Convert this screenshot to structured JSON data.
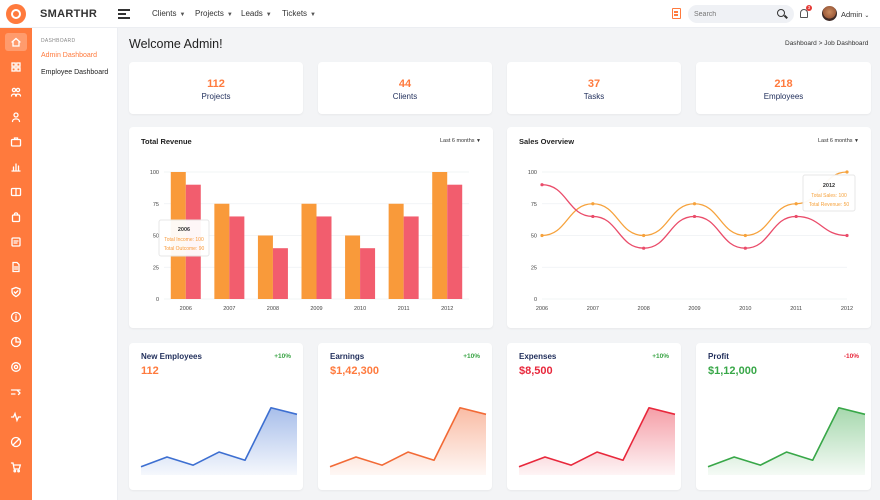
{
  "brand": "SMARTHR",
  "nav": [
    {
      "label": "Clients"
    },
    {
      "label": "Projects"
    },
    {
      "label": "Leads"
    },
    {
      "label": "Tickets"
    }
  ],
  "search": {
    "placeholder": "Search"
  },
  "notifications": {
    "count": "3"
  },
  "user": {
    "name": "Admin"
  },
  "sidebar": {
    "caption": "DASHBOARD",
    "items": [
      {
        "label": "Admin Dashboard",
        "active": true
      },
      {
        "label": "Employee Dashboard",
        "active": false
      }
    ],
    "rail_icons": [
      "home-icon",
      "apps-icon",
      "users-icon",
      "user-icon",
      "briefcase-icon",
      "chart-icon",
      "id-card-icon",
      "bag-icon",
      "file-icon",
      "document-icon",
      "shield-icon",
      "info-icon",
      "pie-icon",
      "gear-icon",
      "shuffle-icon",
      "activity-icon",
      "ban-icon",
      "cart-icon"
    ]
  },
  "page": {
    "title": "Welcome Admin!"
  },
  "breadcrumb": {
    "parent": "Dashboard",
    "separator": ">",
    "current": "Job Dashboard"
  },
  "stats": [
    {
      "value": "112",
      "label": "Projects"
    },
    {
      "value": "44",
      "label": "Clients"
    },
    {
      "value": "37",
      "label": "Tasks"
    },
    {
      "value": "218",
      "label": "Employees"
    }
  ],
  "revenue": {
    "title": "Total Revenue",
    "range": "Last 6 months",
    "tooltip": {
      "year": "2006",
      "line1": "Total Income: 100",
      "line2": "Total Outcome: 90"
    }
  },
  "sales": {
    "title": "Sales Overview",
    "range": "Last 6 months",
    "tooltip": {
      "year": "2012",
      "line1": "Total Sales: 100",
      "line2": "Total Revenue: 50"
    }
  },
  "mini": [
    {
      "title": "New Employees",
      "pct": "+10%",
      "value": "112",
      "color": "#3d6fd1",
      "valColor": "#ff7a3d",
      "pctColor": "#3aa445",
      "data": [
        10,
        22,
        12,
        28,
        18,
        82,
        74
      ]
    },
    {
      "title": "Earnings",
      "pct": "+10%",
      "value": "$1,42,300",
      "color": "#f26a36",
      "valColor": "#ff7a3d",
      "pctColor": "#3aa445",
      "data": [
        10,
        22,
        12,
        28,
        18,
        82,
        74
      ]
    },
    {
      "title": "Expenses",
      "pct": "+10%",
      "value": "$8,500",
      "color": "#e8283c",
      "valColor": "#e8283c",
      "pctColor": "#3aa445",
      "data": [
        10,
        22,
        12,
        28,
        18,
        82,
        74
      ]
    },
    {
      "title": "Profit",
      "pct": "-10%",
      "value": "$1,12,000",
      "color": "#38a748",
      "valColor": "#38a748",
      "pctColor": "#e8283c",
      "data": [
        10,
        22,
        12,
        28,
        18,
        82,
        74
      ]
    }
  ],
  "chart_data": [
    {
      "type": "bar",
      "title": "Total Revenue",
      "categories": [
        "2006",
        "2007",
        "2008",
        "2009",
        "2010",
        "2011",
        "2012"
      ],
      "series": [
        {
          "name": "Total Income",
          "values": [
            100,
            75,
            50,
            75,
            50,
            75,
            100
          ],
          "color": "#f99a3a"
        },
        {
          "name": "Total Outcome",
          "values": [
            90,
            65,
            40,
            65,
            40,
            65,
            90
          ],
          "color": "#f25d6e"
        }
      ],
      "yticks": [
        0,
        25,
        50,
        75,
        100
      ],
      "ylim": [
        0,
        100
      ],
      "grid": true
    },
    {
      "type": "line",
      "title": "Sales Overview",
      "categories": [
        "2006",
        "2007",
        "2008",
        "2009",
        "2010",
        "2011",
        "2012"
      ],
      "series": [
        {
          "name": "Total Sales",
          "values": [
            50,
            75,
            50,
            75,
            50,
            75,
            100
          ],
          "color": "#f6a23c"
        },
        {
          "name": "Total Revenue",
          "values": [
            90,
            65,
            40,
            65,
            40,
            65,
            50
          ],
          "color": "#ea4c6a"
        }
      ],
      "yticks": [
        0,
        25,
        50,
        75,
        100
      ],
      "ylim": [
        0,
        100
      ],
      "grid": true
    }
  ]
}
